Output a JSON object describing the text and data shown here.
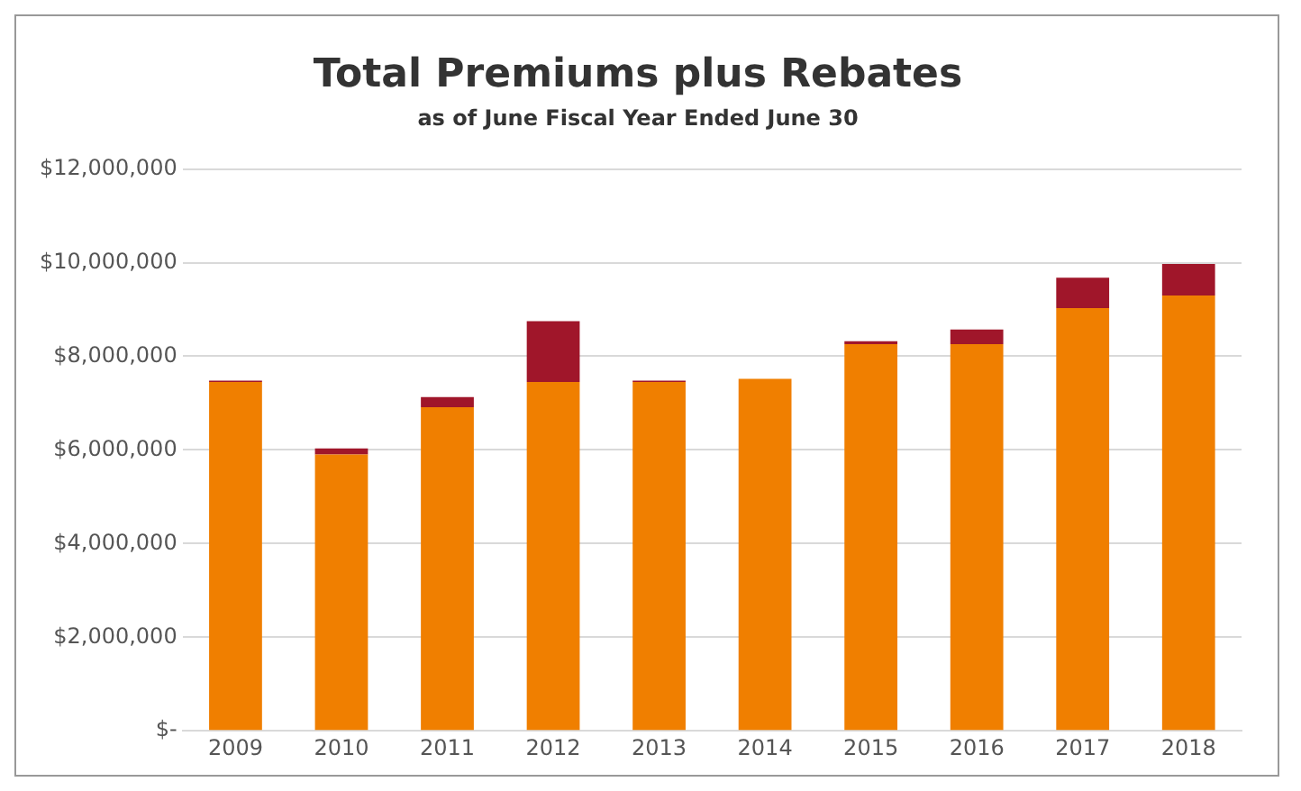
{
  "chart_data": {
    "type": "bar",
    "title": "Total Premiums plus Rebates",
    "subtitle": "as of June Fiscal Year Ended June 30",
    "categories": [
      "2009",
      "2010",
      "2011",
      "2012",
      "2013",
      "2014",
      "2015",
      "2016",
      "2017",
      "2018"
    ],
    "stacked": true,
    "series": [
      {
        "color": "#f07f00",
        "values": [
          7450000,
          5900000,
          6910000,
          7450000,
          7450000,
          7520000,
          8260000,
          8260000,
          9030000,
          9300000
        ]
      },
      {
        "color": "#a0162a",
        "values": [
          30000,
          130000,
          220000,
          1300000,
          30000,
          0,
          60000,
          310000,
          650000,
          670000
        ]
      }
    ],
    "ylim": [
      0,
      12000000
    ],
    "yticks": [
      {
        "value": 0,
        "label": "$-"
      },
      {
        "value": 2000000,
        "label": "$2,000,000"
      },
      {
        "value": 4000000,
        "label": "$4,000,000"
      },
      {
        "value": 6000000,
        "label": "$6,000,000"
      },
      {
        "value": 8000000,
        "label": "$8,000,000"
      },
      {
        "value": 10000000,
        "label": "$10,000,000"
      },
      {
        "value": 12000000,
        "label": "$12,000,000"
      }
    ],
    "grid": "y",
    "legend": false
  }
}
